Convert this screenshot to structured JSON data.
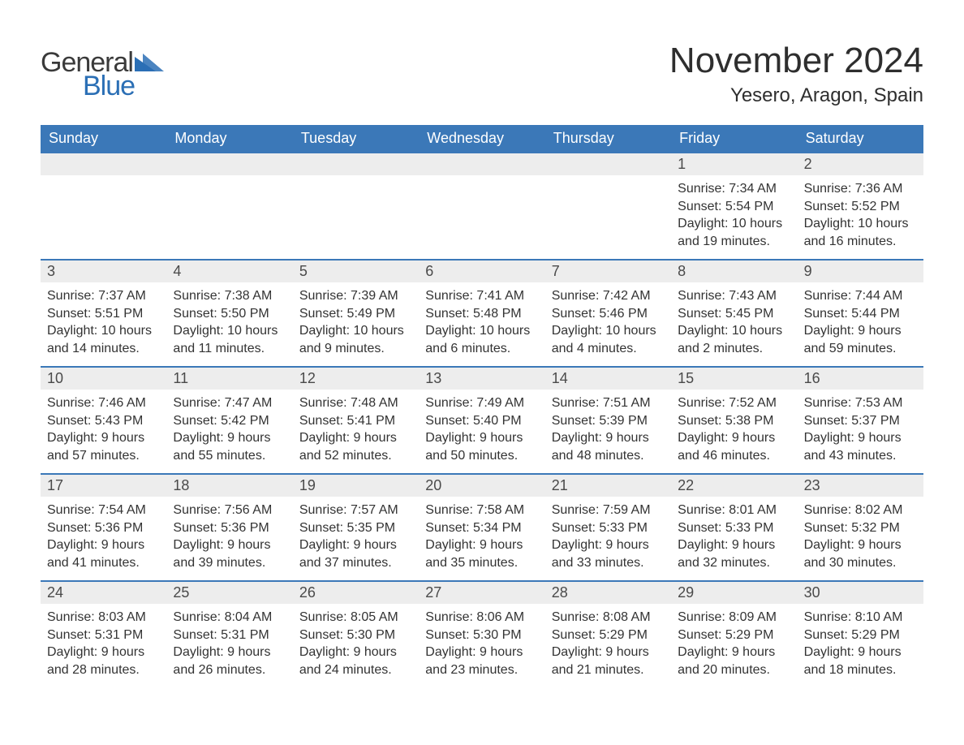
{
  "brand": {
    "text_general": "General",
    "text_blue": "Blue",
    "triangle_color": "#2b6fb5"
  },
  "title": "November 2024",
  "location": "Yesero, Aragon, Spain",
  "colors": {
    "header_bg": "#3b78b8",
    "header_text": "#ffffff",
    "daynum_bg": "#ededed",
    "row_border": "#3b78b8",
    "body_text": "#333333",
    "page_bg": "#ffffff"
  },
  "weekdays": [
    "Sunday",
    "Monday",
    "Tuesday",
    "Wednesday",
    "Thursday",
    "Friday",
    "Saturday"
  ],
  "weeks": [
    [
      {
        "day": "",
        "sunrise": "",
        "sunset": "",
        "daylight1": "",
        "daylight2": ""
      },
      {
        "day": "",
        "sunrise": "",
        "sunset": "",
        "daylight1": "",
        "daylight2": ""
      },
      {
        "day": "",
        "sunrise": "",
        "sunset": "",
        "daylight1": "",
        "daylight2": ""
      },
      {
        "day": "",
        "sunrise": "",
        "sunset": "",
        "daylight1": "",
        "daylight2": ""
      },
      {
        "day": "",
        "sunrise": "",
        "sunset": "",
        "daylight1": "",
        "daylight2": ""
      },
      {
        "day": "1",
        "sunrise": "Sunrise: 7:34 AM",
        "sunset": "Sunset: 5:54 PM",
        "daylight1": "Daylight: 10 hours",
        "daylight2": "and 19 minutes."
      },
      {
        "day": "2",
        "sunrise": "Sunrise: 7:36 AM",
        "sunset": "Sunset: 5:52 PM",
        "daylight1": "Daylight: 10 hours",
        "daylight2": "and 16 minutes."
      }
    ],
    [
      {
        "day": "3",
        "sunrise": "Sunrise: 7:37 AM",
        "sunset": "Sunset: 5:51 PM",
        "daylight1": "Daylight: 10 hours",
        "daylight2": "and 14 minutes."
      },
      {
        "day": "4",
        "sunrise": "Sunrise: 7:38 AM",
        "sunset": "Sunset: 5:50 PM",
        "daylight1": "Daylight: 10 hours",
        "daylight2": "and 11 minutes."
      },
      {
        "day": "5",
        "sunrise": "Sunrise: 7:39 AM",
        "sunset": "Sunset: 5:49 PM",
        "daylight1": "Daylight: 10 hours",
        "daylight2": "and 9 minutes."
      },
      {
        "day": "6",
        "sunrise": "Sunrise: 7:41 AM",
        "sunset": "Sunset: 5:48 PM",
        "daylight1": "Daylight: 10 hours",
        "daylight2": "and 6 minutes."
      },
      {
        "day": "7",
        "sunrise": "Sunrise: 7:42 AM",
        "sunset": "Sunset: 5:46 PM",
        "daylight1": "Daylight: 10 hours",
        "daylight2": "and 4 minutes."
      },
      {
        "day": "8",
        "sunrise": "Sunrise: 7:43 AM",
        "sunset": "Sunset: 5:45 PM",
        "daylight1": "Daylight: 10 hours",
        "daylight2": "and 2 minutes."
      },
      {
        "day": "9",
        "sunrise": "Sunrise: 7:44 AM",
        "sunset": "Sunset: 5:44 PM",
        "daylight1": "Daylight: 9 hours",
        "daylight2": "and 59 minutes."
      }
    ],
    [
      {
        "day": "10",
        "sunrise": "Sunrise: 7:46 AM",
        "sunset": "Sunset: 5:43 PM",
        "daylight1": "Daylight: 9 hours",
        "daylight2": "and 57 minutes."
      },
      {
        "day": "11",
        "sunrise": "Sunrise: 7:47 AM",
        "sunset": "Sunset: 5:42 PM",
        "daylight1": "Daylight: 9 hours",
        "daylight2": "and 55 minutes."
      },
      {
        "day": "12",
        "sunrise": "Sunrise: 7:48 AM",
        "sunset": "Sunset: 5:41 PM",
        "daylight1": "Daylight: 9 hours",
        "daylight2": "and 52 minutes."
      },
      {
        "day": "13",
        "sunrise": "Sunrise: 7:49 AM",
        "sunset": "Sunset: 5:40 PM",
        "daylight1": "Daylight: 9 hours",
        "daylight2": "and 50 minutes."
      },
      {
        "day": "14",
        "sunrise": "Sunrise: 7:51 AM",
        "sunset": "Sunset: 5:39 PM",
        "daylight1": "Daylight: 9 hours",
        "daylight2": "and 48 minutes."
      },
      {
        "day": "15",
        "sunrise": "Sunrise: 7:52 AM",
        "sunset": "Sunset: 5:38 PM",
        "daylight1": "Daylight: 9 hours",
        "daylight2": "and 46 minutes."
      },
      {
        "day": "16",
        "sunrise": "Sunrise: 7:53 AM",
        "sunset": "Sunset: 5:37 PM",
        "daylight1": "Daylight: 9 hours",
        "daylight2": "and 43 minutes."
      }
    ],
    [
      {
        "day": "17",
        "sunrise": "Sunrise: 7:54 AM",
        "sunset": "Sunset: 5:36 PM",
        "daylight1": "Daylight: 9 hours",
        "daylight2": "and 41 minutes."
      },
      {
        "day": "18",
        "sunrise": "Sunrise: 7:56 AM",
        "sunset": "Sunset: 5:36 PM",
        "daylight1": "Daylight: 9 hours",
        "daylight2": "and 39 minutes."
      },
      {
        "day": "19",
        "sunrise": "Sunrise: 7:57 AM",
        "sunset": "Sunset: 5:35 PM",
        "daylight1": "Daylight: 9 hours",
        "daylight2": "and 37 minutes."
      },
      {
        "day": "20",
        "sunrise": "Sunrise: 7:58 AM",
        "sunset": "Sunset: 5:34 PM",
        "daylight1": "Daylight: 9 hours",
        "daylight2": "and 35 minutes."
      },
      {
        "day": "21",
        "sunrise": "Sunrise: 7:59 AM",
        "sunset": "Sunset: 5:33 PM",
        "daylight1": "Daylight: 9 hours",
        "daylight2": "and 33 minutes."
      },
      {
        "day": "22",
        "sunrise": "Sunrise: 8:01 AM",
        "sunset": "Sunset: 5:33 PM",
        "daylight1": "Daylight: 9 hours",
        "daylight2": "and 32 minutes."
      },
      {
        "day": "23",
        "sunrise": "Sunrise: 8:02 AM",
        "sunset": "Sunset: 5:32 PM",
        "daylight1": "Daylight: 9 hours",
        "daylight2": "and 30 minutes."
      }
    ],
    [
      {
        "day": "24",
        "sunrise": "Sunrise: 8:03 AM",
        "sunset": "Sunset: 5:31 PM",
        "daylight1": "Daylight: 9 hours",
        "daylight2": "and 28 minutes."
      },
      {
        "day": "25",
        "sunrise": "Sunrise: 8:04 AM",
        "sunset": "Sunset: 5:31 PM",
        "daylight1": "Daylight: 9 hours",
        "daylight2": "and 26 minutes."
      },
      {
        "day": "26",
        "sunrise": "Sunrise: 8:05 AM",
        "sunset": "Sunset: 5:30 PM",
        "daylight1": "Daylight: 9 hours",
        "daylight2": "and 24 minutes."
      },
      {
        "day": "27",
        "sunrise": "Sunrise: 8:06 AM",
        "sunset": "Sunset: 5:30 PM",
        "daylight1": "Daylight: 9 hours",
        "daylight2": "and 23 minutes."
      },
      {
        "day": "28",
        "sunrise": "Sunrise: 8:08 AM",
        "sunset": "Sunset: 5:29 PM",
        "daylight1": "Daylight: 9 hours",
        "daylight2": "and 21 minutes."
      },
      {
        "day": "29",
        "sunrise": "Sunrise: 8:09 AM",
        "sunset": "Sunset: 5:29 PM",
        "daylight1": "Daylight: 9 hours",
        "daylight2": "and 20 minutes."
      },
      {
        "day": "30",
        "sunrise": "Sunrise: 8:10 AM",
        "sunset": "Sunset: 5:29 PM",
        "daylight1": "Daylight: 9 hours",
        "daylight2": "and 18 minutes."
      }
    ]
  ]
}
